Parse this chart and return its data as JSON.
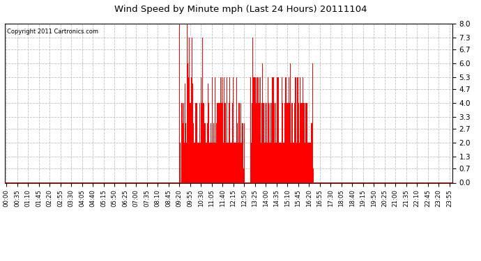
{
  "title": "Wind Speed by Minute mph (Last 24 Hours) 20111104",
  "copyright": "Copyright 2011 Cartronics.com",
  "bar_color": "#ff0000",
  "background_color": "#ffffff",
  "grid_color": "#c0c0c0",
  "ylim": [
    0.0,
    8.0
  ],
  "yticks": [
    0.0,
    0.7,
    1.3,
    2.0,
    2.7,
    3.3,
    4.0,
    4.7,
    5.3,
    6.0,
    6.7,
    7.3,
    8.0
  ],
  "minutes_per_day": 1440,
  "wind_data": {
    "560": 2.0,
    "561": 8.0,
    "562": 1.3,
    "563": 2.0,
    "564": 2.0,
    "566": 5.0,
    "567": 4.0,
    "568": 4.0,
    "569": 4.0,
    "570": 4.0,
    "571": 3.0,
    "572": 3.0,
    "573": 5.0,
    "574": 4.0,
    "575": 2.0,
    "576": 2.0,
    "577": 2.0,
    "578": 3.0,
    "579": 5.0,
    "580": 4.0,
    "581": 3.0,
    "582": 4.0,
    "583": 2.0,
    "584": 5.0,
    "585": 2.0,
    "586": 8.0,
    "587": 7.3,
    "588": 6.0,
    "589": 5.3,
    "590": 5.3,
    "591": 6.7,
    "592": 7.3,
    "593": 5.3,
    "594": 4.0,
    "595": 4.0,
    "596": 4.0,
    "597": 4.0,
    "598": 6.0,
    "599": 5.3,
    "600": 4.0,
    "601": 4.0,
    "602": 7.3,
    "603": 6.0,
    "604": 5.0,
    "605": 4.0,
    "606": 3.0,
    "607": 2.0,
    "608": 2.0,
    "609": 3.0,
    "610": 2.0,
    "611": 2.0,
    "612": 5.3,
    "613": 4.0,
    "614": 5.3,
    "615": 4.0,
    "616": 4.0,
    "617": 4.0,
    "618": 3.0,
    "619": 4.0,
    "620": 2.0,
    "621": 2.0,
    "622": 2.0,
    "623": 2.0,
    "624": 2.0,
    "625": 5.3,
    "626": 4.0,
    "627": 4.0,
    "628": 3.0,
    "629": 2.0,
    "630": 2.0,
    "631": 5.3,
    "632": 2.0,
    "633": 4.0,
    "634": 2.0,
    "635": 7.3,
    "636": 5.3,
    "637": 2.0,
    "638": 4.0,
    "639": 4.0,
    "640": 4.0,
    "641": 4.0,
    "642": 3.0,
    "643": 2.0,
    "644": 3.0,
    "645": 5.3,
    "646": 2.0,
    "647": 2.0,
    "648": 2.0,
    "649": 2.0,
    "650": 2.0,
    "651": 3.0,
    "652": 4.0,
    "653": 5.0,
    "654": 5.3,
    "655": 5.0,
    "656": 4.0,
    "657": 2.0,
    "658": 2.0,
    "659": 2.0,
    "660": 2.0,
    "661": 2.0,
    "662": 3.0,
    "663": 4.0,
    "664": 2.0,
    "665": 2.0,
    "666": 5.3,
    "667": 5.3,
    "668": 2.0,
    "669": 2.0,
    "670": 2.0,
    "671": 2.0,
    "672": 3.0,
    "673": 2.0,
    "674": 2.0,
    "675": 2.0,
    "676": 5.3,
    "677": 5.3,
    "678": 2.0,
    "679": 3.0,
    "680": 4.0,
    "681": 3.0,
    "682": 2.0,
    "683": 4.0,
    "684": 4.0,
    "685": 4.0,
    "686": 4.0,
    "687": 4.0,
    "688": 2.0,
    "689": 5.3,
    "690": 4.0,
    "691": 4.0,
    "692": 4.0,
    "693": 2.0,
    "694": 5.3,
    "695": 4.0,
    "696": 4.0,
    "697": 5.3,
    "698": 4.0,
    "699": 5.3,
    "700": 2.0,
    "701": 4.0,
    "702": 5.3,
    "703": 2.0,
    "704": 7.3,
    "705": 5.3,
    "706": 2.0,
    "707": 4.0,
    "708": 4.0,
    "709": 4.0,
    "710": 4.0,
    "711": 3.0,
    "712": 2.0,
    "713": 3.0,
    "714": 5.3,
    "715": 2.0,
    "716": 2.0,
    "717": 2.0,
    "718": 2.0,
    "719": 2.0,
    "720": 3.0,
    "721": 4.0,
    "722": 5.0,
    "723": 5.3,
    "724": 5.0,
    "725": 4.0,
    "726": 2.0,
    "727": 2.0,
    "728": 2.0,
    "729": 2.0,
    "730": 2.0,
    "731": 3.0,
    "732": 4.0,
    "733": 2.0,
    "734": 2.0,
    "735": 5.3,
    "736": 5.3,
    "737": 2.0,
    "738": 2.0,
    "739": 2.0,
    "740": 2.0,
    "741": 3.0,
    "742": 2.0,
    "743": 2.0,
    "744": 2.0,
    "745": 5.3,
    "746": 5.3,
    "747": 2.0,
    "748": 3.0,
    "749": 4.0,
    "750": 3.0,
    "751": 2.0,
    "752": 4.0,
    "753": 4.0,
    "754": 4.0,
    "755": 4.0,
    "756": 4.0,
    "757": 2.0,
    "758": 5.3,
    "759": 4.0,
    "760": 4.0,
    "761": 4.0,
    "762": 2.0,
    "763": 1.3,
    "764": 3.0,
    "765": 2.0,
    "766": 3.0,
    "767": 2.0,
    "768": 6.0,
    "769": 0.7,
    "770": 0.7,
    "771": 3.0,
    "772": 0.7,
    "790": 2.0,
    "791": 5.3,
    "792": 5.3,
    "793": 2.0,
    "794": 2.0,
    "795": 5.3,
    "796": 4.0,
    "797": 4.0,
    "798": 7.3,
    "799": 6.0,
    "800": 5.3,
    "801": 5.3,
    "802": 5.3,
    "803": 7.3,
    "804": 2.0,
    "805": 5.3,
    "806": 2.0,
    "807": 5.3,
    "808": 5.3,
    "809": 4.0,
    "810": 4.0,
    "811": 4.0,
    "812": 5.3,
    "813": 4.0,
    "814": 5.3,
    "815": 4.0,
    "816": 4.0,
    "817": 5.3,
    "818": 5.3,
    "819": 4.0,
    "820": 4.0,
    "821": 4.0,
    "822": 4.0,
    "823": 5.3,
    "824": 5.3,
    "825": 2.0,
    "826": 4.0,
    "827": 4.0,
    "828": 4.0,
    "829": 5.3,
    "830": 6.0,
    "831": 4.0,
    "832": 4.0,
    "833": 4.0,
    "834": 4.0,
    "835": 4.0,
    "836": 2.0,
    "837": 4.0,
    "838": 4.0,
    "839": 4.0,
    "840": 3.3,
    "841": 2.0,
    "842": 2.0,
    "843": 4.0,
    "844": 2.0,
    "845": 2.0,
    "846": 3.3,
    "847": 4.0,
    "848": 5.3,
    "849": 4.0,
    "850": 4.0,
    "851": 5.3,
    "852": 2.0,
    "853": 2.0,
    "854": 4.0,
    "855": 4.0,
    "856": 4.0,
    "857": 2.0,
    "858": 5.3,
    "859": 4.0,
    "860": 5.3,
    "861": 5.3,
    "862": 4.0,
    "863": 5.3,
    "864": 5.3,
    "865": 2.0,
    "866": 5.3,
    "867": 5.3,
    "868": 4.0,
    "869": 4.0,
    "870": 2.0,
    "871": 2.0,
    "872": 4.0,
    "873": 4.0,
    "874": 4.0,
    "875": 2.0,
    "876": 5.3,
    "877": 5.3,
    "878": 4.0,
    "879": 5.3,
    "880": 5.3,
    "881": 4.0,
    "882": 5.3,
    "883": 5.3,
    "884": 2.0,
    "885": 2.0,
    "886": 2.0,
    "887": 2.0,
    "888": 2.0,
    "889": 2.0,
    "890": 2.0,
    "891": 2.0,
    "892": 2.0,
    "893": 5.3,
    "894": 5.3,
    "895": 4.0,
    "896": 5.3,
    "897": 2.0,
    "898": 2.0,
    "899": 2.0,
    "900": 2.0,
    "901": 2.0,
    "902": 4.0,
    "903": 5.3,
    "904": 5.3,
    "905": 5.3,
    "906": 5.3,
    "907": 5.3,
    "908": 4.0,
    "909": 4.0,
    "910": 4.0,
    "911": 4.0,
    "912": 2.0,
    "913": 4.0,
    "914": 5.3,
    "915": 5.3,
    "916": 4.0,
    "917": 2.0,
    "918": 4.0,
    "919": 5.3,
    "920": 6.0,
    "921": 5.3,
    "922": 2.0,
    "923": 4.0,
    "924": 4.0,
    "925": 5.3,
    "926": 4.0,
    "927": 4.0,
    "928": 4.0,
    "929": 2.0,
    "930": 4.0,
    "931": 2.0,
    "932": 2.0,
    "933": 4.0,
    "934": 2.0,
    "935": 4.0,
    "936": 5.3,
    "937": 4.0,
    "938": 5.3,
    "939": 5.3,
    "940": 2.0,
    "941": 4.0,
    "942": 5.3,
    "943": 2.0,
    "944": 2.0,
    "945": 5.3,
    "946": 4.0,
    "947": 4.0,
    "948": 4.0,
    "949": 2.0,
    "950": 2.0,
    "951": 5.3,
    "952": 5.3,
    "953": 2.0,
    "954": 4.0,
    "955": 4.0,
    "956": 4.0,
    "957": 4.0,
    "958": 4.0,
    "959": 2.0,
    "960": 5.3,
    "961": 5.3,
    "962": 4.0,
    "963": 4.0,
    "964": 4.0,
    "965": 4.0,
    "966": 4.0,
    "967": 2.0,
    "968": 2.0,
    "969": 2.0,
    "970": 4.0,
    "971": 4.0,
    "972": 4.0,
    "973": 2.0,
    "974": 4.0,
    "975": 5.3,
    "976": 2.0,
    "977": 2.0,
    "978": 4.0,
    "979": 2.0,
    "980": 2.0,
    "981": 2.0,
    "982": 2.0,
    "983": 2.0,
    "984": 2.0,
    "985": 2.0,
    "986": 2.0,
    "987": 1.3,
    "988": 3.0,
    "989": 2.0,
    "990": 3.0,
    "991": 2.0,
    "992": 6.0,
    "993": 0.7,
    "994": 0.7,
    "995": 3.0,
    "996": 0.7
  }
}
